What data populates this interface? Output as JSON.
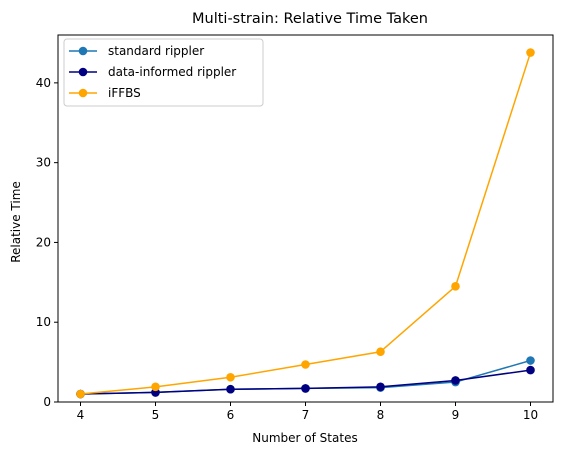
{
  "chart_data": {
    "type": "line",
    "title": "Multi-strain: Relative Time Taken",
    "xlabel": "Number of States",
    "ylabel": "Relative Time",
    "x": [
      4,
      5,
      6,
      7,
      8,
      9,
      10
    ],
    "xlim": [
      3.7,
      10.3
    ],
    "ylim": [
      0,
      46
    ],
    "xticks": [
      4,
      5,
      6,
      7,
      8,
      9,
      10
    ],
    "yticks": [
      0,
      10,
      20,
      30,
      40
    ],
    "grid": false,
    "legend_position": "top-left",
    "series": [
      {
        "name": "standard rippler",
        "color": "#1f77b4",
        "values": [
          1.0,
          1.2,
          1.6,
          1.7,
          1.8,
          2.5,
          5.2
        ]
      },
      {
        "name": "data-informed rippler",
        "color": "#000080",
        "values": [
          1.0,
          1.2,
          1.6,
          1.7,
          1.9,
          2.7,
          4.0
        ]
      },
      {
        "name": "iFFBS",
        "color": "#ffa500",
        "values": [
          1.0,
          1.9,
          3.1,
          4.7,
          6.3,
          14.5,
          43.8
        ]
      }
    ]
  }
}
